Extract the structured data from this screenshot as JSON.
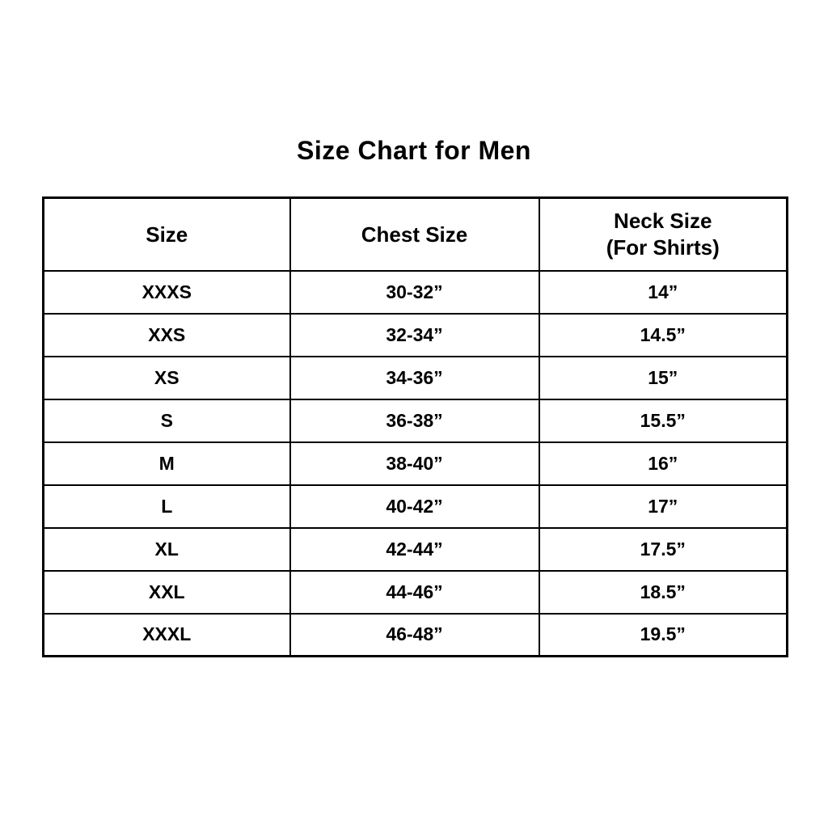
{
  "title": "Size Chart for Men",
  "colors": {
    "background": "#ffffff",
    "border": "#000000",
    "text": "#000000"
  },
  "chart_data": {
    "type": "table",
    "title": "Size Chart for Men",
    "headers": [
      {
        "label": "Size",
        "sublabel": ""
      },
      {
        "label": "Chest Size",
        "sublabel": ""
      },
      {
        "label": "Neck Size",
        "sublabel": "(For Shirts)"
      }
    ],
    "rows": [
      [
        "XXXS",
        "30-32”",
        "14”"
      ],
      [
        "XXS",
        "32-34”",
        "14.5”"
      ],
      [
        "XS",
        "34-36”",
        "15”"
      ],
      [
        "S",
        "36-38”",
        "15.5”"
      ],
      [
        "M",
        "38-40”",
        "16”"
      ],
      [
        "L",
        "40-42”",
        "17”"
      ],
      [
        "XL",
        "42-44”",
        "17.5”"
      ],
      [
        "XXL",
        "44-46”",
        "18.5”"
      ],
      [
        "XXXL",
        "46-48”",
        "19.5”"
      ]
    ]
  }
}
